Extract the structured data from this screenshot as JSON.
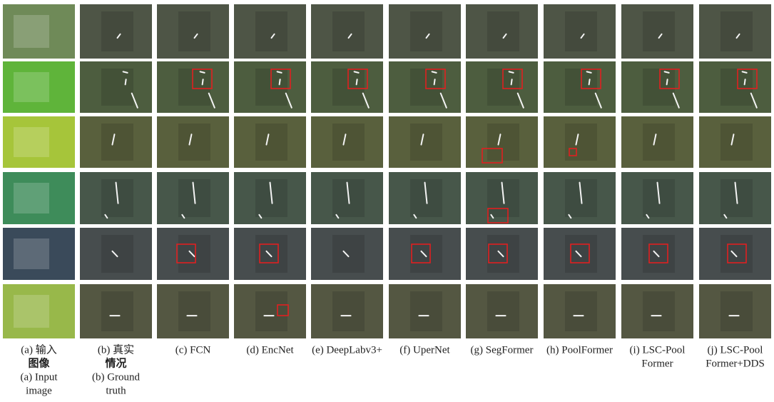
{
  "columns": [
    {
      "lines": [
        "(a) 输入",
        "图像",
        "(a) Input",
        "image"
      ]
    },
    {
      "lines": [
        "(b) 真实",
        "情况",
        "(b) Ground",
        "truth"
      ]
    },
    {
      "lines": [
        "(c) FCN"
      ]
    },
    {
      "lines": [
        "(d) EncNet"
      ]
    },
    {
      "lines": [
        "(e) DeepLabv3+"
      ]
    },
    {
      "lines": [
        "(f) UperNet"
      ]
    },
    {
      "lines": [
        "(g) SegFormer"
      ]
    },
    {
      "lines": [
        "(h) PoolFormer"
      ]
    },
    {
      "lines": [
        "(i) LSC-Pool",
        "Former"
      ]
    },
    {
      "lines": [
        "(j) LSC-Pool",
        "Former+DDS"
      ]
    }
  ]
}
